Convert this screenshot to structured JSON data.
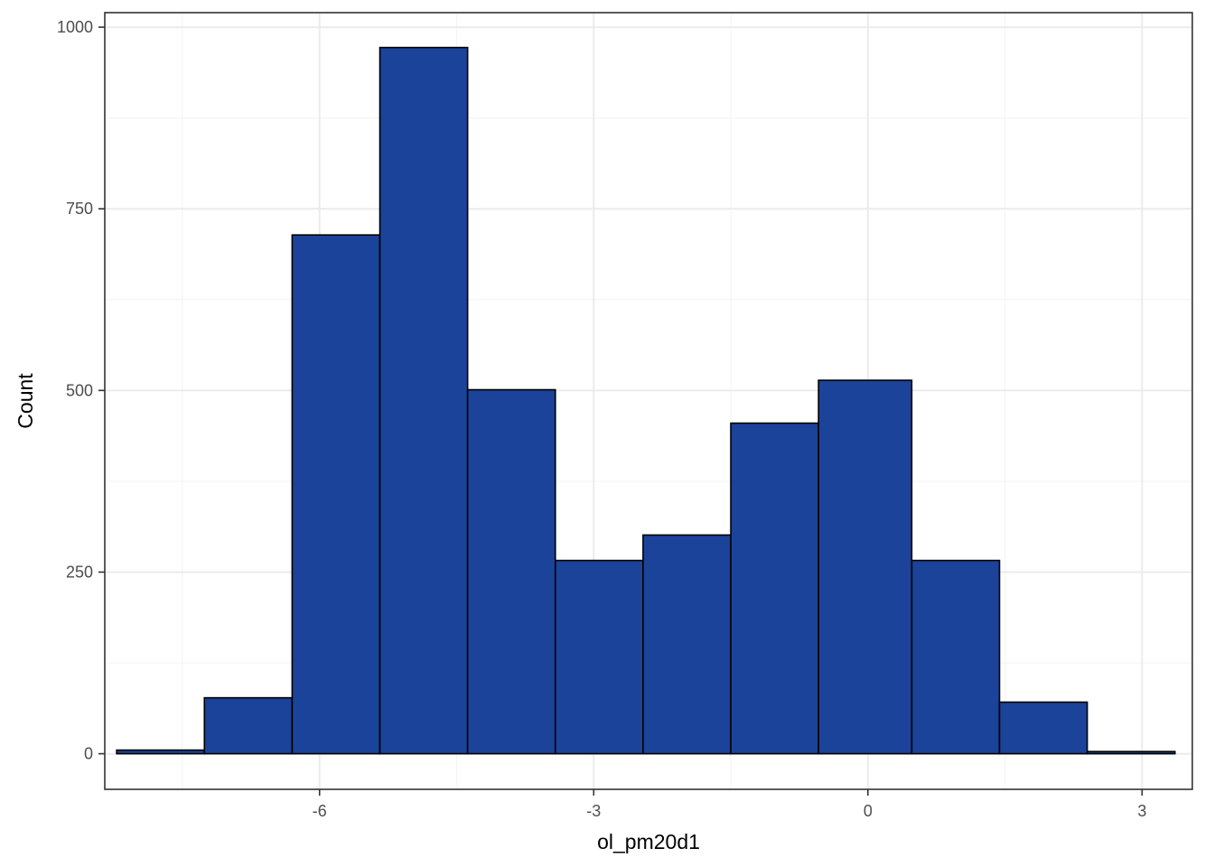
{
  "chart_data": {
    "type": "bar",
    "subtype": "histogram",
    "xlabel": "ol_pm20d1",
    "ylabel": "Count",
    "xlim": [
      -8.35,
      3.55
    ],
    "ylim": [
      -49,
      1020
    ],
    "x_ticks": [
      -6,
      -3,
      0,
      3
    ],
    "x_tick_labels": [
      "-6",
      "-3",
      "0",
      "3"
    ],
    "y_ticks": [
      0,
      250,
      500,
      750,
      1000
    ],
    "y_tick_labels": [
      "0",
      "250",
      "500",
      "750",
      "1000"
    ],
    "bins": [
      {
        "x0": -8.22,
        "x1": -7.26,
        "count": 5
      },
      {
        "x0": -7.26,
        "x1": -6.3,
        "count": 77
      },
      {
        "x0": -6.3,
        "x1": -5.34,
        "count": 714
      },
      {
        "x0": -5.34,
        "x1": -4.38,
        "count": 972
      },
      {
        "x0": -4.38,
        "x1": -3.42,
        "count": 501
      },
      {
        "x0": -3.42,
        "x1": -2.46,
        "count": 266
      },
      {
        "x0": -2.46,
        "x1": -1.5,
        "count": 301
      },
      {
        "x0": -1.5,
        "x1": -0.54,
        "count": 455
      },
      {
        "x0": -0.54,
        "x1": 0.48,
        "count": 514
      },
      {
        "x0": 0.48,
        "x1": 1.44,
        "count": 266
      },
      {
        "x0": 1.44,
        "x1": 2.4,
        "count": 71
      },
      {
        "x0": 2.4,
        "x1": 3.36,
        "count": 3
      }
    ],
    "grid": true,
    "theme": "bw",
    "colors": {
      "fill": "#1a4399",
      "stroke": "#000000",
      "grid_major": "#ebebeb",
      "grid_minor": "#f5f5f5",
      "panel_border": "#333333"
    }
  }
}
